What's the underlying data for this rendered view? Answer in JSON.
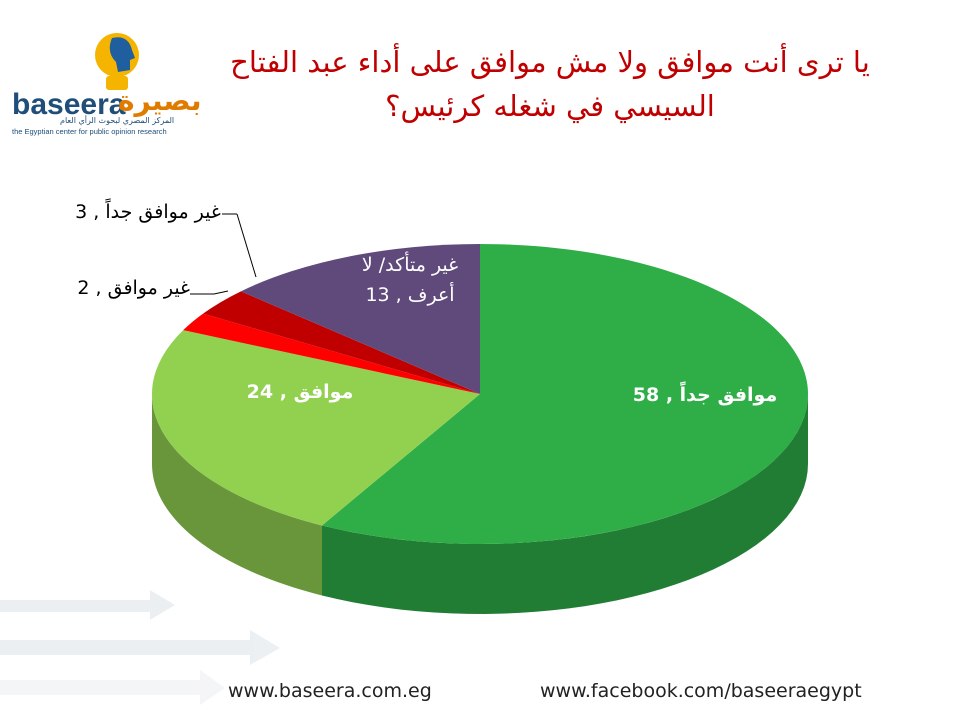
{
  "logo": {
    "name_latin": "baseera",
    "name_arabic": "بصيرة",
    "tagline_arabic": "المركز المصري لبحوث الرأي العام",
    "tagline_english": "the Egyptian center for public opinion research"
  },
  "chart_data": {
    "type": "pie3d",
    "title": "يا ترى أنت موافق ولا مش موافق على أداء عبد الفتاح السيسي في شغله كرئيس؟",
    "categories": [
      "موافق جداً",
      "موافق",
      "غير موافق",
      "غير موافق جداً",
      "غير متأكد/ لا أعرف"
    ],
    "values": [
      58,
      24,
      2,
      3,
      13
    ],
    "colors": [
      "#2fae48",
      "#92d050",
      "#ff0000",
      "#c00000",
      "#604a7b"
    ],
    "label_separator": ","
  },
  "footer": {
    "website": "www.baseera.com.eg",
    "facebook": "www.facebook.com/baseeraegypt"
  }
}
